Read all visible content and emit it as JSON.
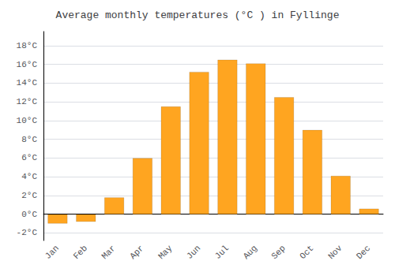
{
  "chart_data": {
    "type": "bar",
    "title": "Average monthly temperatures (°C ) in Fyllinge",
    "categories": [
      "Jan",
      "Feb",
      "Mar",
      "Apr",
      "May",
      "Jun",
      "Jul",
      "Aug",
      "Sep",
      "Oct",
      "Nov",
      "Dec"
    ],
    "values": [
      -1.0,
      -0.8,
      1.8,
      6.0,
      11.5,
      15.2,
      16.5,
      16.1,
      12.5,
      9.0,
      4.1,
      0.6
    ],
    "color": "#FFA520",
    "ylim": [
      -2.8,
      19.5
    ],
    "yticks": [
      {
        "value": -2,
        "label": "-2°C"
      },
      {
        "value": 0,
        "label": "0°C"
      },
      {
        "value": 2,
        "label": "2°C"
      },
      {
        "value": 4,
        "label": "4°C"
      },
      {
        "value": 6,
        "label": "6°C"
      },
      {
        "value": 8,
        "label": "8°C"
      },
      {
        "value": 10,
        "label": "10°C"
      },
      {
        "value": 12,
        "label": "12°C"
      },
      {
        "value": 14,
        "label": "14°C"
      },
      {
        "value": 16,
        "label": "16°C"
      },
      {
        "value": 18,
        "label": "18°C"
      }
    ],
    "grid": true
  }
}
